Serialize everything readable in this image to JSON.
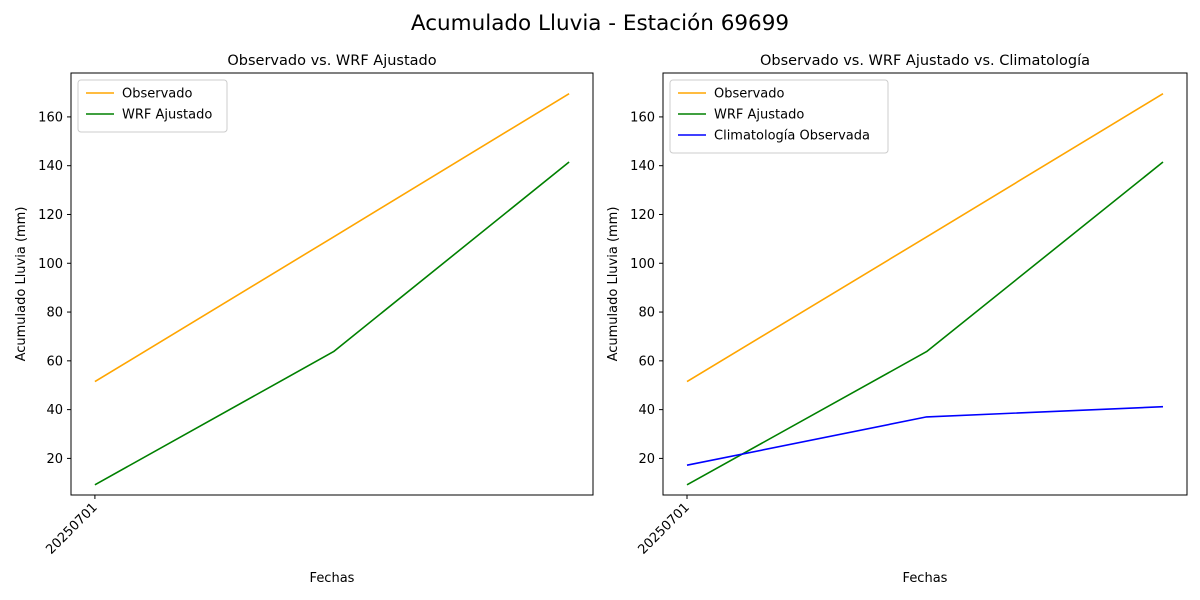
{
  "figure_title": "Acumulado Lluvia - Estación 69699",
  "colors": {
    "observado": "#ffa500",
    "wrf": "#008000",
    "climatologia": "#0000ff"
  },
  "chart_data": [
    {
      "type": "line",
      "title": "Observado vs. WRF Ajustado",
      "xlabel": "Fechas",
      "ylabel": "Acumulado Lluvia (mm)",
      "x_tick_labels": [
        "20250701"
      ],
      "y_ticks": [
        20,
        40,
        60,
        80,
        100,
        120,
        140,
        160
      ],
      "ylim": [
        5,
        178
      ],
      "grid": false,
      "legend": "upper left",
      "series": [
        {
          "name": "Observado",
          "color": "#ffa500",
          "values": [
            51.5,
            110.8,
            169.5
          ]
        },
        {
          "name": "WRF Ajustado",
          "color": "#008000",
          "values": [
            9.2,
            63.8,
            141.5
          ]
        }
      ]
    },
    {
      "type": "line",
      "title": "Observado vs. WRF Ajustado vs. Climatología",
      "xlabel": "Fechas",
      "ylabel": "Acumulado Lluvia (mm)",
      "x_tick_labels": [
        "20250701"
      ],
      "y_ticks": [
        20,
        40,
        60,
        80,
        100,
        120,
        140,
        160
      ],
      "ylim": [
        5,
        178
      ],
      "grid": false,
      "legend": "upper left",
      "series": [
        {
          "name": "Observado",
          "color": "#ffa500",
          "values": [
            51.5,
            110.8,
            169.5
          ]
        },
        {
          "name": "WRF Ajustado",
          "color": "#008000",
          "values": [
            9.2,
            63.8,
            141.5
          ]
        },
        {
          "name": "Climatología Observada",
          "color": "#0000ff",
          "values": [
            17.2,
            37.0,
            41.2
          ]
        }
      ]
    }
  ]
}
